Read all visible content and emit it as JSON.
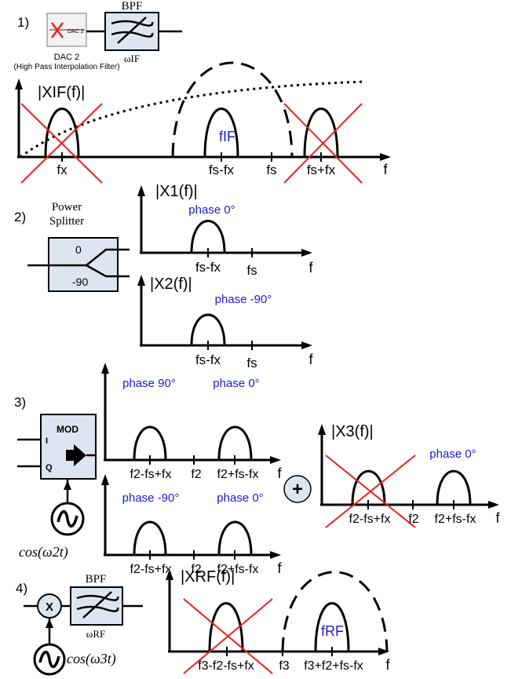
{
  "step1": {
    "number": "1)",
    "dac_box_text": "DAC 2",
    "dac_caption_line1": "DAC 2",
    "dac_caption_line2": "(High Pass Interpolation Filter)",
    "bpf_label": "BPF",
    "bpf_caption": "ωIF",
    "spectrum_title": "|XIF(f)|",
    "lobe_label": "fIF",
    "tick_fx": "fx",
    "tick_fs_minus_fx": "fs-fx",
    "tick_fs": "fs",
    "tick_fs_plus_fx": "fs+fx",
    "axis_f": "f"
  },
  "step2": {
    "number": "2)",
    "splitter_line1": "Power",
    "splitter_line2": "Splitter",
    "port_0": "0",
    "port_90": "-90",
    "x1_title": "|X1(f)|",
    "x1_phase": "phase 0°",
    "x1_tick_a": "fs-fx",
    "x1_tick_b": "fs",
    "x2_title": "|X2(f)|",
    "x2_phase": "phase -90°",
    "x2_tick_a": "fs-fx",
    "x2_tick_b": "fs",
    "axis_f": "f"
  },
  "step3": {
    "number": "3)",
    "mod_label": "MOD",
    "mod_i": "I",
    "mod_q": "Q",
    "lo_label": "cos(ω2t)",
    "plus": "+",
    "top_phase_left": "phase 90°",
    "top_phase_right": "phase 0°",
    "bottom_phase_left": "phase -90°",
    "bottom_phase_right": "phase 0°",
    "tick_lower": "f2-fs+fx",
    "tick_f2": "f2",
    "tick_upper": "f2+fs-fx",
    "x3_title": "|X3(f)|",
    "x3_phase": "phase 0°",
    "axis_f": "f"
  },
  "step4": {
    "number": "4)",
    "mixer_label": "X",
    "bpf_label": "BPF",
    "bpf_caption": "ωRF",
    "lo_label": "cos(ω3t)",
    "spectrum_title": "|XRF(f)|",
    "lobe_label": "fRF",
    "tick_image": "f3-f2-fs+fx",
    "tick_f3": "f3",
    "tick_rf": "f3+f2+fs-fx",
    "axis_f": "f"
  },
  "colors": {
    "cross": "#e8231b",
    "phase_text": "#1b1bd0",
    "block_fill": "#dde6f0"
  }
}
